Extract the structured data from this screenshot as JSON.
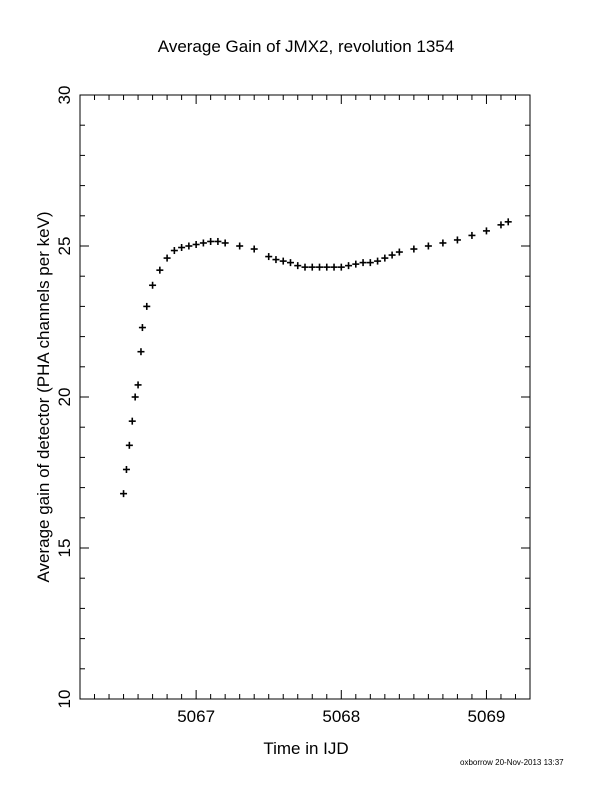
{
  "chart_data": {
    "type": "scatter",
    "title": "Average Gain of JMX2, revolution 1354",
    "xlabel": "Time in IJD",
    "ylabel": "Average gain of detector (PHA channels per keV)",
    "xlim": [
      5066.2,
      5069.3
    ],
    "ylim": [
      10,
      30
    ],
    "xticks": [
      5067,
      5068,
      5069
    ],
    "yticks": [
      10,
      15,
      20,
      25,
      30
    ],
    "marker": "+",
    "color": "#000000",
    "grid": false,
    "series": [
      {
        "x": [
          5066.5,
          5066.52,
          5066.54,
          5066.56,
          5066.58,
          5066.6,
          5066.62,
          5066.63,
          5066.66,
          5066.7,
          5066.75,
          5066.8,
          5066.85,
          5066.9,
          5066.95,
          5067.0,
          5067.05,
          5067.1,
          5067.15,
          5067.2,
          5067.3,
          5067.4,
          5067.5,
          5067.55,
          5067.6,
          5067.65,
          5067.7,
          5067.75,
          5067.8,
          5067.85,
          5067.9,
          5067.95,
          5068.0,
          5068.05,
          5068.1,
          5068.15,
          5068.2,
          5068.25,
          5068.3,
          5068.35,
          5068.4,
          5068.5,
          5068.6,
          5068.7,
          5068.8,
          5068.9,
          5069.0,
          5069.1,
          5069.15
        ],
        "y": [
          16.8,
          17.6,
          18.4,
          19.2,
          20.0,
          20.4,
          21.5,
          22.3,
          23.0,
          23.7,
          24.2,
          24.6,
          24.85,
          24.95,
          25.0,
          25.05,
          25.1,
          25.15,
          25.15,
          25.1,
          25.0,
          24.9,
          24.65,
          24.55,
          24.5,
          24.45,
          24.35,
          24.3,
          24.3,
          24.3,
          24.3,
          24.3,
          24.3,
          24.35,
          24.4,
          24.45,
          24.45,
          24.5,
          24.6,
          24.7,
          24.8,
          24.9,
          25.0,
          25.1,
          25.2,
          25.35,
          25.5,
          25.7,
          25.8
        ]
      }
    ]
  },
  "footer": "oxborrow 20-Nov-2013 13:37"
}
